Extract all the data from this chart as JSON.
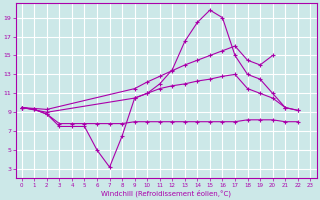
{
  "xlabel": "Windchill (Refroidissement éolien,°C)",
  "background_color": "#cce8e8",
  "grid_color": "#ffffff",
  "line_color": "#aa00aa",
  "xlim": [
    -0.5,
    23.5
  ],
  "ylim": [
    2,
    20.5
  ],
  "xticks": [
    0,
    1,
    2,
    3,
    4,
    5,
    6,
    7,
    8,
    9,
    10,
    11,
    12,
    13,
    14,
    15,
    16,
    17,
    18,
    19,
    20,
    21,
    22,
    23
  ],
  "yticks": [
    3,
    5,
    7,
    9,
    11,
    13,
    15,
    17,
    19
  ],
  "line_wavy_x": [
    0,
    1,
    2,
    3,
    4,
    5,
    6,
    7,
    8,
    9,
    10,
    11,
    12,
    13,
    14,
    15,
    16,
    17,
    18,
    19,
    20,
    21,
    22
  ],
  "line_wavy_y": [
    9.5,
    9.3,
    8.8,
    7.5,
    7.5,
    7.5,
    5.0,
    3.2,
    6.5,
    10.5,
    11.0,
    12.0,
    13.5,
    16.5,
    18.5,
    19.8,
    19.0,
    15.0,
    13.0,
    12.5,
    11.0,
    9.5,
    9.2
  ],
  "line_upper_x": [
    0,
    2,
    9,
    10,
    11,
    12,
    13,
    14,
    15,
    16,
    17,
    18,
    19,
    20
  ],
  "line_upper_y": [
    9.5,
    9.3,
    11.5,
    12.2,
    12.8,
    13.4,
    14.0,
    14.5,
    15.0,
    15.5,
    16.0,
    14.5,
    14.0,
    15.0
  ],
  "line_mid_x": [
    0,
    2,
    9,
    10,
    11,
    12,
    13,
    14,
    15,
    16,
    17,
    18,
    19,
    20,
    21,
    22
  ],
  "line_mid_y": [
    9.5,
    9.0,
    10.5,
    11.0,
    11.5,
    11.8,
    12.0,
    12.3,
    12.5,
    12.8,
    13.0,
    11.5,
    11.0,
    10.5,
    9.5,
    9.2
  ],
  "line_flat_x": [
    0,
    1,
    2,
    3,
    4,
    5,
    6,
    7,
    8,
    9,
    10,
    11,
    12,
    13,
    14,
    15,
    16,
    17,
    18,
    19,
    20,
    21,
    22
  ],
  "line_flat_y": [
    9.5,
    9.3,
    8.8,
    7.8,
    7.8,
    7.8,
    7.8,
    7.8,
    7.8,
    8.0,
    8.0,
    8.0,
    8.0,
    8.0,
    8.0,
    8.0,
    8.0,
    8.0,
    8.2,
    8.2,
    8.2,
    8.0,
    8.0
  ]
}
